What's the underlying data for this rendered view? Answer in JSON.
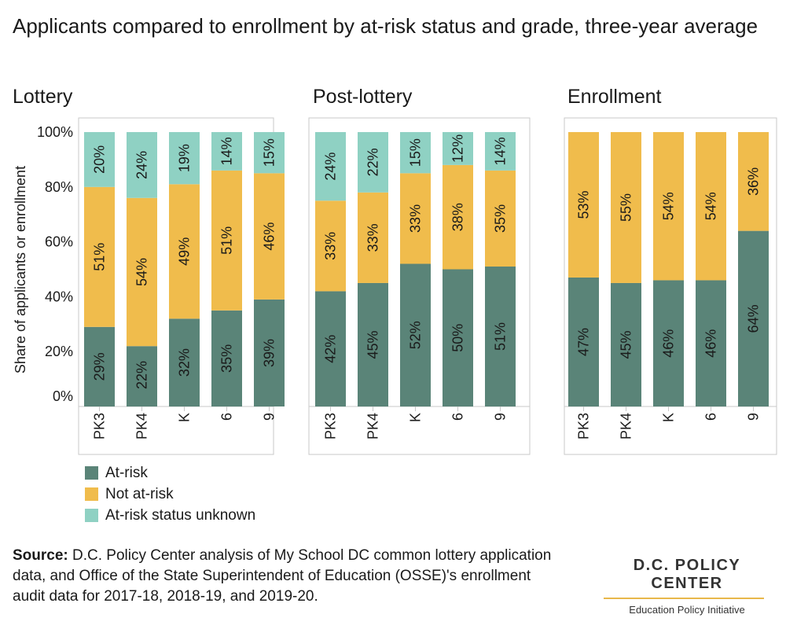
{
  "title": "Applicants compared to enrollment by at-risk status and grade, three-year average",
  "colors": {
    "at_risk": "#5a8478",
    "not_at_risk": "#f0bc4c",
    "unknown": "#8fd1c3",
    "border": "#c8c8c8",
    "tick": "#333333"
  },
  "legend": [
    {
      "label": "At-risk",
      "color": "#5a8478"
    },
    {
      "label": "Not at-risk",
      "color": "#f0bc4c"
    },
    {
      "label": "At-risk status unknown",
      "color": "#8fd1c3"
    }
  ],
  "source": {
    "label": "Source:",
    "text": " D.C. Policy Center analysis of My School DC common lottery application data, and Office of the State Superintendent of Education (OSSE)'s enrollment audit data for 2017-18, 2018-19, and 2019-20."
  },
  "logo": {
    "org": "D.C. POLICY CENTER",
    "sub": "Education Policy Initiative"
  },
  "chart_data": {
    "type": "bar",
    "stacked": true,
    "ylabel": "Share of applicants or enrollment",
    "ylim": [
      0,
      100
    ],
    "yticks": [
      "0%",
      "20%",
      "40%",
      "60%",
      "80%",
      "100%"
    ],
    "categories": [
      "PK3",
      "PK4",
      "K",
      "6",
      "9"
    ],
    "panels": [
      {
        "title": "Lottery",
        "series": [
          {
            "name": "At-risk",
            "values": [
              29,
              22,
              32,
              35,
              39
            ]
          },
          {
            "name": "Not at-risk",
            "values": [
              51,
              54,
              49,
              51,
              46
            ]
          },
          {
            "name": "At-risk status unknown",
            "values": [
              20,
              24,
              19,
              14,
              15
            ]
          }
        ]
      },
      {
        "title": "Post-lottery",
        "series": [
          {
            "name": "At-risk",
            "values": [
              42,
              45,
              52,
              50,
              51
            ]
          },
          {
            "name": "Not at-risk",
            "values": [
              33,
              33,
              33,
              38,
              35
            ]
          },
          {
            "name": "At-risk status unknown",
            "values": [
              24,
              22,
              15,
              12,
              14
            ]
          }
        ]
      },
      {
        "title": "Enrollment",
        "series": [
          {
            "name": "At-risk",
            "values": [
              47,
              45,
              46,
              46,
              64
            ]
          },
          {
            "name": "Not at-risk",
            "values": [
              53,
              55,
              54,
              54,
              36
            ]
          },
          {
            "name": "At-risk status unknown",
            "values": [
              0,
              0,
              0,
              0,
              0
            ]
          }
        ]
      }
    ]
  }
}
